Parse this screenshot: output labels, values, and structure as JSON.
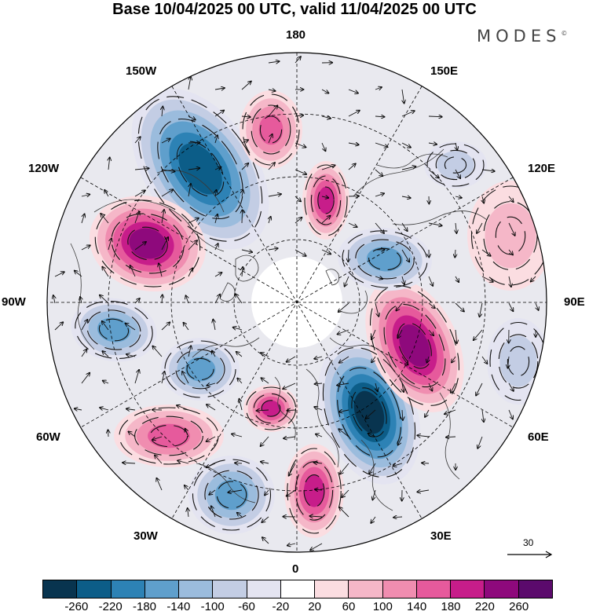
{
  "title": "Base 10/04/2025 00 UTC, valid 11/04/2025 00 UTC",
  "brand": "MODES",
  "brand_mark": "©",
  "longitude_labels": {
    "top": "180",
    "top_left": "150W",
    "top_right": "150E",
    "upper_left": "120W",
    "upper_right": "120E",
    "left": "90W",
    "right": "90E",
    "lower_left": "60W",
    "lower_right": "60E",
    "bottom_left": "30W",
    "bottom_right": "30E",
    "bottom": "0"
  },
  "vector_scale": {
    "label": "30"
  },
  "colorbar": {
    "colors": [
      "#08344f",
      "#0c5d88",
      "#2d82b5",
      "#5f9fcc",
      "#9bbcdd",
      "#c3cde4",
      "#e4e4f1",
      "#ffffff",
      "#fbdde1",
      "#f5b7c8",
      "#f08db0",
      "#e65a9c",
      "#c71d8a",
      "#8e097c",
      "#5b0a6c"
    ],
    "tick_labels": [
      "-260",
      "-220",
      "-180",
      "-140",
      "-100",
      "-60",
      "-20",
      "20",
      "60",
      "100",
      "140",
      "180",
      "220",
      "260"
    ]
  },
  "anomaly_centers": [
    {
      "kind": "negative",
      "value": -240,
      "near": "120W-150W"
    },
    {
      "kind": "positive",
      "value": 240,
      "near": "110W"
    },
    {
      "kind": "negative",
      "value": -160,
      "near": "80W"
    },
    {
      "kind": "negative",
      "value": -140,
      "near": "60W-70W"
    },
    {
      "kind": "positive",
      "value": 140,
      "near": "60W"
    },
    {
      "kind": "positive",
      "value": 200,
      "near": "30W"
    },
    {
      "kind": "negative",
      "value": -160,
      "near": "30W-40W"
    },
    {
      "kind": "positive",
      "value": 180,
      "near": "10E"
    },
    {
      "kind": "negative",
      "value": -260,
      "near": "30E-40E"
    },
    {
      "kind": "positive",
      "value": 250,
      "near": "70E-80E"
    },
    {
      "kind": "negative",
      "value": -160,
      "near": "110E-120E"
    },
    {
      "kind": "positive",
      "value": 160,
      "near": "160E"
    },
    {
      "kind": "negative",
      "value": -60,
      "near": "120E-130E"
    },
    {
      "kind": "positive",
      "value": 180,
      "near": "170W"
    },
    {
      "kind": "negative",
      "value": -60,
      "near": "90E"
    },
    {
      "kind": "positive",
      "value": 80,
      "near": "100E"
    }
  ]
}
